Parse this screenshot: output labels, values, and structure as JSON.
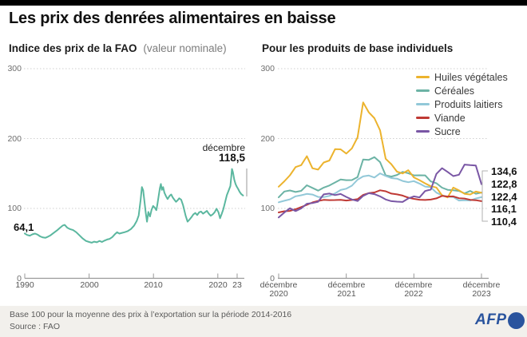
{
  "header": {
    "title": "Les prix des denrées alimentaires en baisse"
  },
  "chart_data": [
    {
      "type": "line",
      "title": "Indice des prix de la FAO",
      "subtitle": "(valeur nominale)",
      "ylim": [
        0,
        300
      ],
      "grid": "dotted-horizontal",
      "y_ticks": [
        {
          "label": "300",
          "value": 300
        },
        {
          "label": "200",
          "value": 200
        },
        {
          "label": "100",
          "value": 100
        },
        {
          "label": "0",
          "value": 0
        }
      ],
      "x_ticks": [
        {
          "label": "1990",
          "year": 1990
        },
        {
          "label": "2000",
          "year": 2000
        },
        {
          "label": "2010",
          "year": 2010
        },
        {
          "label": "2020",
          "year": 2020
        },
        {
          "label": "23",
          "year": 2023
        }
      ],
      "annotations": {
        "start_label": "64,1",
        "end_line1": "décembre",
        "end_line2": "118,5"
      },
      "series": [
        {
          "name": "Indice FAO",
          "color": "#5bb79f",
          "points": [
            [
              1990.0,
              64.1
            ],
            [
              1990.4,
              62.0
            ],
            [
              1990.8,
              61.0
            ],
            [
              1991.2,
              63.0
            ],
            [
              1991.6,
              64.0
            ],
            [
              1992.0,
              62.5
            ],
            [
              1992.4,
              60.0
            ],
            [
              1992.8,
              58.5
            ],
            [
              1993.2,
              58.0
            ],
            [
              1993.6,
              59.5
            ],
            [
              1994.0,
              61.5
            ],
            [
              1994.5,
              65.0
            ],
            [
              1995.0,
              68.5
            ],
            [
              1995.5,
              72.5
            ],
            [
              1995.9,
              75.5
            ],
            [
              1996.2,
              76.5
            ],
            [
              1996.6,
              72.5
            ],
            [
              1997.0,
              70.5
            ],
            [
              1997.5,
              69.0
            ],
            [
              1998.0,
              66.0
            ],
            [
              1998.5,
              61.5
            ],
            [
              1999.0,
              57.0
            ],
            [
              1999.5,
              53.5
            ],
            [
              2000.0,
              52.0
            ],
            [
              2000.4,
              51.0
            ],
            [
              2000.8,
              52.5
            ],
            [
              2001.2,
              51.5
            ],
            [
              2001.6,
              53.5
            ],
            [
              2002.0,
              52.0
            ],
            [
              2002.4,
              54.0
            ],
            [
              2002.8,
              55.5
            ],
            [
              2003.2,
              56.5
            ],
            [
              2003.6,
              59.0
            ],
            [
              2004.0,
              63.0
            ],
            [
              2004.35,
              66.0
            ],
            [
              2004.7,
              64.0
            ],
            [
              2005.1,
              65.0
            ],
            [
              2005.5,
              66.0
            ],
            [
              2006.0,
              67.5
            ],
            [
              2006.5,
              70.5
            ],
            [
              2007.0,
              75.5
            ],
            [
              2007.4,
              82.0
            ],
            [
              2007.7,
              90.0
            ],
            [
              2008.0,
              112.0
            ],
            [
              2008.2,
              130.5
            ],
            [
              2008.4,
              126.0
            ],
            [
              2008.6,
              110.0
            ],
            [
              2008.8,
              94.0
            ],
            [
              2009.0,
              81.0
            ],
            [
              2009.2,
              95.0
            ],
            [
              2009.45,
              88.5
            ],
            [
              2009.7,
              98.0
            ],
            [
              2009.95,
              103.5
            ],
            [
              2010.2,
              101.0
            ],
            [
              2010.45,
              97.5
            ],
            [
              2010.6,
              105.0
            ],
            [
              2010.8,
              117.0
            ],
            [
              2011.0,
              129.5
            ],
            [
              2011.15,
              135.0
            ],
            [
              2011.3,
              126.5
            ],
            [
              2011.5,
              130.5
            ],
            [
              2011.7,
              122.5
            ],
            [
              2011.95,
              117.5
            ],
            [
              2012.2,
              113.5
            ],
            [
              2012.5,
              118.0
            ],
            [
              2012.75,
              120.0
            ],
            [
              2013.0,
              115.5
            ],
            [
              2013.25,
              112.5
            ],
            [
              2013.5,
              109.5
            ],
            [
              2013.75,
              111.5
            ],
            [
              2014.0,
              114.5
            ],
            [
              2014.3,
              112.5
            ],
            [
              2014.6,
              104.5
            ],
            [
              2015.0,
              89.5
            ],
            [
              2015.3,
              81.0
            ],
            [
              2015.6,
              84.0
            ],
            [
              2015.9,
              87.5
            ],
            [
              2016.2,
              91.5
            ],
            [
              2016.5,
              93.5
            ],
            [
              2016.8,
              90.5
            ],
            [
              2017.1,
              94.5
            ],
            [
              2017.4,
              95.5
            ],
            [
              2017.7,
              92.5
            ],
            [
              2018.0,
              94.5
            ],
            [
              2018.3,
              96.5
            ],
            [
              2018.6,
              92.5
            ],
            [
              2018.9,
              89.5
            ],
            [
              2019.2,
              91.5
            ],
            [
              2019.5,
              94.5
            ],
            [
              2019.8,
              99.5
            ],
            [
              2020.1,
              94.5
            ],
            [
              2020.35,
              86.0
            ],
            [
              2020.6,
              92.0
            ],
            [
              2020.85,
              99.0
            ],
            [
              2021.1,
              108.0
            ],
            [
              2021.4,
              119.0
            ],
            [
              2021.7,
              126.0
            ],
            [
              2021.95,
              132.0
            ],
            [
              2022.1,
              146.0
            ],
            [
              2022.2,
              156.5
            ],
            [
              2022.35,
              152.0
            ],
            [
              2022.55,
              141.0
            ],
            [
              2022.75,
              135.0
            ],
            [
              2022.95,
              131.0
            ],
            [
              2023.15,
              128.0
            ],
            [
              2023.4,
              123.5
            ],
            [
              2023.65,
              120.5
            ],
            [
              2023.92,
              118.5
            ]
          ]
        }
      ]
    },
    {
      "type": "line",
      "title": "Pour les produits de base individuels",
      "ylim": [
        0,
        300
      ],
      "grid": "dotted-horizontal",
      "legend_position": "top-right",
      "y_ticks": [
        {
          "label": "300",
          "value": 300
        },
        {
          "label": "200",
          "value": 200
        },
        {
          "label": "100",
          "value": 100
        },
        {
          "label": "0",
          "value": 0
        }
      ],
      "x_ticks": [
        {
          "line1": "décembre",
          "line2": "2020",
          "month": 0
        },
        {
          "line1": "décembre",
          "line2": "2021",
          "month": 12
        },
        {
          "line1": "décembre",
          "line2": "2022",
          "month": 24
        },
        {
          "line1": "décembre",
          "line2": "2023",
          "month": 36
        }
      ],
      "x_start": "décembre 2020",
      "x_end": "décembre 2023",
      "series": [
        {
          "name": "Huiles végétales",
          "color": "#ecb32d",
          "end_label": "122,4",
          "values": [
            131.1,
            138.8,
            147.4,
            159.2,
            162.0,
            174.7,
            157.5,
            155.5,
            165.7,
            168.6,
            184.8,
            184.6,
            178.5,
            185.9,
            201.7,
            251.8,
            237.5,
            229.2,
            211.8,
            171.1,
            163.3,
            152.6,
            150.1,
            154.7,
            144.4,
            140.4,
            135.9,
            131.8,
            130.0,
            118.7,
            115.8,
            129.8,
            125.8,
            120.9,
            120.0,
            124.1,
            122.4
          ]
        },
        {
          "name": "Céréales",
          "color": "#6cb3a5",
          "end_label": "122,8",
          "values": [
            115.9,
            124.2,
            125.7,
            123.6,
            125.1,
            133.1,
            129.4,
            125.5,
            129.8,
            132.8,
            137.1,
            141.5,
            140.5,
            140.6,
            144.8,
            170.1,
            169.5,
            173.4,
            166.3,
            147.3,
            145.6,
            147.9,
            152.3,
            150.4,
            147.3,
            147.4,
            147.3,
            138.6,
            136.1,
            129.7,
            126.6,
            125.9,
            125.0,
            121.5,
            125.0,
            121.0,
            122.8
          ]
        },
        {
          "name": "Produits laitiers",
          "color": "#92c8d8",
          "end_label": "116,1",
          "values": [
            108.8,
            111.0,
            113.0,
            117.4,
            118.9,
            120.8,
            119.9,
            116.5,
            116.2,
            117.9,
            121.5,
            126.4,
            128.2,
            132.6,
            141.1,
            145.8,
            147.1,
            144.2,
            150.2,
            146.5,
            143.4,
            142.6,
            139.3,
            137.5,
            139.1,
            135.5,
            131.3,
            130.3,
            122.6,
            118.7,
            116.8,
            116.3,
            111.3,
            111.7,
            111.3,
            114.2,
            116.1
          ]
        },
        {
          "name": "Viande",
          "color": "#bf3934",
          "end_label": "110,4",
          "values": [
            94.3,
            96.0,
            96.4,
            98.9,
            101.9,
            105.1,
            108.6,
            110.8,
            112.2,
            111.9,
            112.0,
            112.3,
            111.3,
            112.1,
            113.3,
            119.3,
            121.9,
            122.9,
            125.9,
            124.6,
            121.3,
            120.1,
            118.4,
            115.4,
            113.7,
            112.4,
            112.1,
            112.7,
            114.4,
            117.9,
            117.0,
            117.3,
            114.6,
            114.2,
            112.3,
            111.8,
            110.4
          ]
        },
        {
          "name": "Sucre",
          "color": "#7a57a5",
          "end_label": "134,6",
          "values": [
            87.1,
            94.2,
            100.2,
            96.2,
            100.0,
            106.7,
            107.7,
            109.6,
            120.1,
            121.2,
            119.1,
            120.7,
            116.4,
            112.8,
            110.6,
            117.9,
            121.8,
            120.4,
            117.3,
            112.8,
            110.4,
            109.7,
            109.2,
            114.3,
            117.2,
            115.8,
            124.9,
            127.0,
            149.4,
            157.6,
            152.2,
            146.3,
            148.2,
            162.7,
            161.9,
            161.4,
            134.6
          ]
        }
      ],
      "end_labels_top_to_bottom": [
        "134,6",
        "122,8",
        "122,4",
        "116,1",
        "110,4"
      ]
    }
  ],
  "footer": {
    "note": "Base 100 pour la moyenne des prix à l’exportation sur la période 2014-2016",
    "source": "Source : FAO",
    "brand": "AFP",
    "brand_color": "#2a549e"
  }
}
